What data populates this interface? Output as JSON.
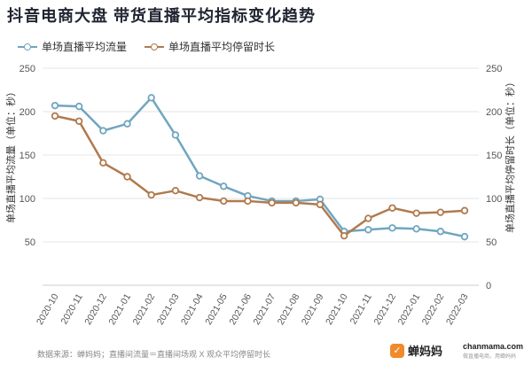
{
  "title": "抖音电商大盘 带货直播平均指标变化趋势",
  "footer": "数据来源：蝉妈妈；直播间流量＝直播间场观 X 观众平均停留时长",
  "brand": {
    "name": "蝉妈妈",
    "site": "chanmama.com",
    "tagline": "做直播电商，用蝉妈妈"
  },
  "colors": {
    "series1": "#6fa6c0",
    "series2": "#b07a4e",
    "axis_text": "#555555",
    "grid": "#e6e6e6"
  },
  "chart_data": {
    "type": "line",
    "x": [
      "2020-10",
      "2020-11",
      "2020-12",
      "2021-01",
      "2021-02",
      "2021-03",
      "2021-04",
      "2021-05",
      "2021-06",
      "2021-07",
      "2021-08",
      "2021-09",
      "2021-10",
      "2021-11",
      "2021-12",
      "2022-01",
      "2022-02",
      "2022-03"
    ],
    "series": [
      {
        "name": "单场直播平均流量",
        "axis": "left",
        "values": [
          207,
          206,
          178,
          186,
          216,
          173,
          126,
          114,
          103,
          97,
          97,
          99,
          62,
          64,
          66,
          65,
          62,
          56
        ]
      },
      {
        "name": "单场直播平均停留时长",
        "axis": "right",
        "values": [
          195,
          189,
          141,
          125,
          104,
          109,
          101,
          97,
          97,
          95,
          95,
          93,
          57,
          77,
          89,
          83,
          84,
          86
        ]
      }
    ],
    "ylabel_left": "单场直播平均流量（单位：秒）",
    "ylabel_right": "单场直播平均停留时长（单位：秒）",
    "ylim": [
      0,
      250
    ],
    "yticks_left": [
      50,
      100,
      150,
      200,
      250
    ],
    "yticks_right": [
      0,
      50,
      100,
      150,
      200,
      250
    ],
    "grid": true,
    "legend_position": "top-left"
  }
}
